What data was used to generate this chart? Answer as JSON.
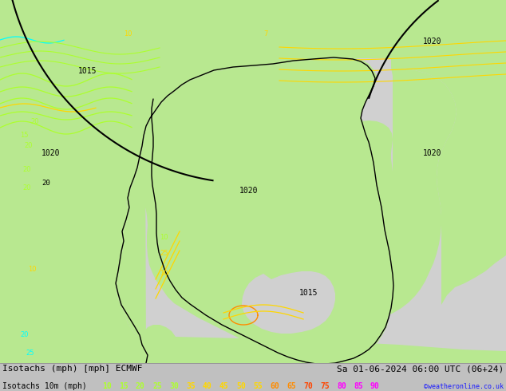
{
  "title_left": "Isotachs (mph) [mph] ECMWF",
  "title_right": "Sa 01-06-2024 06:00 UTC (06+24)",
  "legend_label": "Isotachs 10m (mph)",
  "legend_values": [
    10,
    15,
    20,
    25,
    30,
    35,
    40,
    45,
    50,
    55,
    60,
    65,
    70,
    75,
    80,
    85,
    90
  ],
  "legend_colors": [
    "#adff2f",
    "#adff2f",
    "#adff2f",
    "#adff2f",
    "#adff2f",
    "#ffd700",
    "#ffd700",
    "#ffd700",
    "#ffd700",
    "#ffd700",
    "#ff8c00",
    "#ff8c00",
    "#ff4500",
    "#ff4500",
    "#ff00ff",
    "#ff00ff",
    "#ff00ff"
  ],
  "watermark": "©weatheronline.co.uk",
  "ocean_color": "#d0d0d0",
  "land_green": "#b8e890",
  "land_green_dark": "#90c870",
  "label_fontsize": 8,
  "legend_value_fontsize": 7,
  "figsize": [
    6.34,
    4.9
  ],
  "dpi": 100,
  "bottom_bar_color": "#c0c0c0",
  "pressure_color": "#000000",
  "coastline_color": "#000000"
}
